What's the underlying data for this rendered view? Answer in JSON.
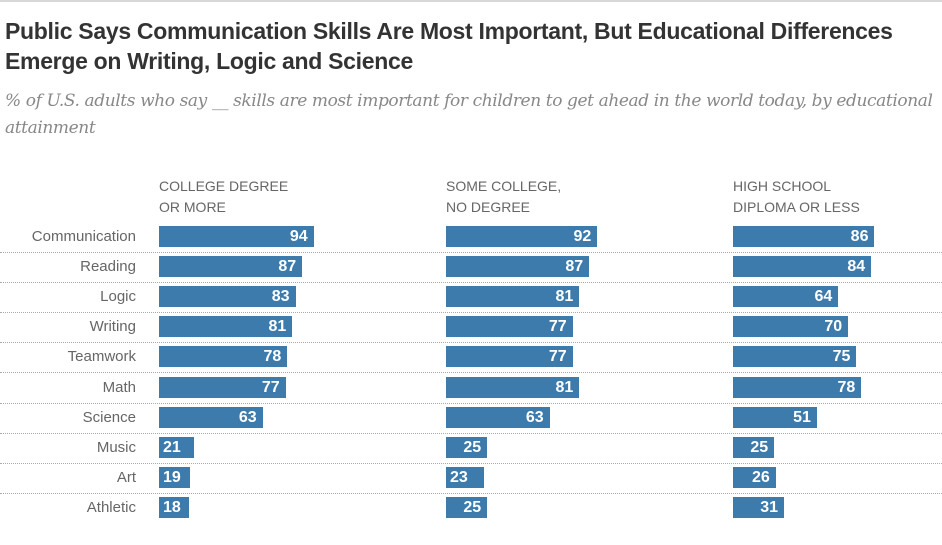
{
  "chart_data": {
    "type": "bar",
    "orientation": "horizontal",
    "title": "Public Says Communication Skills Are Most Important, But Educational Differences Emerge on Writing, Logic and Science",
    "subtitle": "% of U.S. adults who say __ skills are most important for children to get ahead in the world today, by educational attainment",
    "categories": [
      "Communication",
      "Reading",
      "Logic",
      "Writing",
      "Teamwork",
      "Math",
      "Science",
      "Music",
      "Art",
      "Athletic"
    ],
    "series": [
      {
        "name": "COLLEGE DEGREE\nOR MORE",
        "values": [
          94,
          87,
          83,
          81,
          78,
          77,
          63,
          21,
          19,
          18
        ]
      },
      {
        "name": "SOME COLLEGE,\nNO DEGREE",
        "values": [
          92,
          87,
          81,
          77,
          77,
          81,
          63,
          25,
          23,
          25
        ]
      },
      {
        "name": "HIGH SCHOOL\nDIPLOMA OR LESS",
        "values": [
          86,
          84,
          64,
          70,
          75,
          78,
          51,
          25,
          26,
          31
        ]
      }
    ],
    "xlim": [
      0,
      100
    ],
    "grid": false,
    "legend": "column-headers",
    "bar_color": "#3c7bab"
  }
}
